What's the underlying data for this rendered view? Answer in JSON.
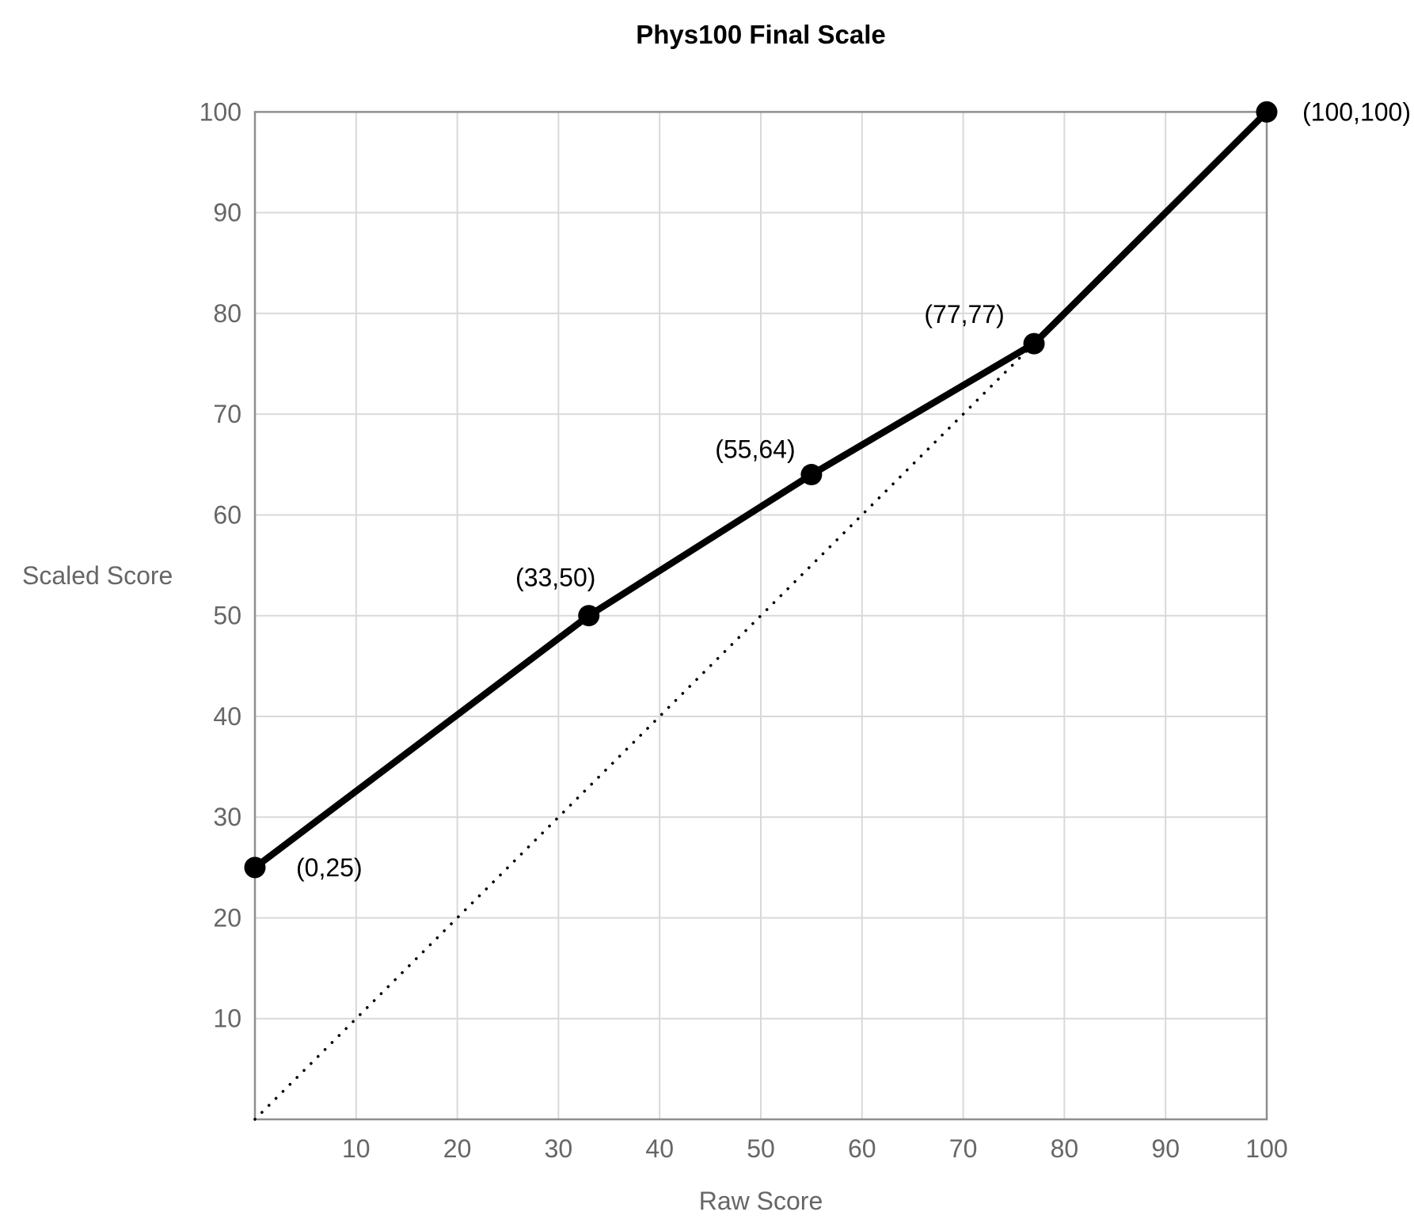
{
  "chart_data": {
    "type": "line",
    "title": "Phys100 Final Scale",
    "xlabel": "Raw Score",
    "ylabel": "Scaled Score",
    "xlim": [
      0,
      100
    ],
    "ylim": [
      0,
      100
    ],
    "xticks": [
      10,
      20,
      30,
      40,
      50,
      60,
      70,
      80,
      90,
      100
    ],
    "yticks": [
      10,
      20,
      30,
      40,
      50,
      60,
      70,
      80,
      90,
      100
    ],
    "grid": true,
    "legend": false,
    "series": [
      {
        "name": "scaled-score-curve",
        "style": "solid-with-markers",
        "color": "#000000",
        "line_width": 8.5,
        "marker_radius": 13.5,
        "points": [
          {
            "x": 0,
            "y": 25,
            "label": "(0,25)",
            "label_dx": 52,
            "label_dy": 0,
            "label_anchor": "start"
          },
          {
            "x": 33,
            "y": 50,
            "label": "(33,50)",
            "label_dx": -42,
            "label_dy": -48,
            "label_anchor": "middle"
          },
          {
            "x": 55,
            "y": 64,
            "label": "(55,64)",
            "label_dx": -71,
            "label_dy": -32,
            "label_anchor": "middle"
          },
          {
            "x": 77,
            "y": 77,
            "label": "(77,77)",
            "label_dx": -88,
            "label_dy": -37,
            "label_anchor": "middle"
          },
          {
            "x": 100,
            "y": 100,
            "label": "(100,100)",
            "label_dx": 45,
            "label_dy": 0,
            "label_anchor": "start"
          }
        ]
      },
      {
        "name": "identity-reference-line",
        "style": "dotted",
        "color": "#000000",
        "line_width": 3.6,
        "points": [
          {
            "x": 0,
            "y": 0
          },
          {
            "x": 100,
            "y": 100
          }
        ]
      }
    ],
    "colors": {
      "background": "#ffffff",
      "grid": "#d9d9d9",
      "axis_border": "#8e8e8e",
      "tick_label": "#666666",
      "axis_title": "#666666",
      "title": "#000000",
      "series": "#000000"
    },
    "font_sizes": {
      "title": 33,
      "tick_label": 32,
      "axis_title": 32,
      "point_label": 32
    }
  }
}
